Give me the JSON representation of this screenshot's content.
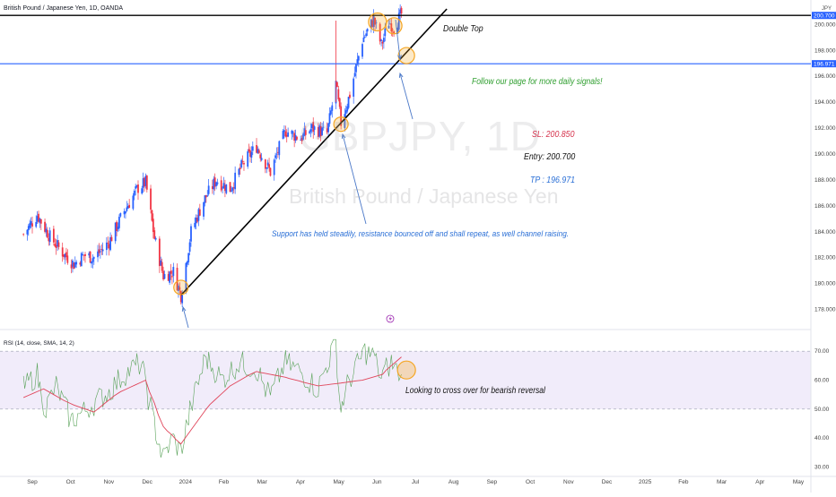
{
  "header": {
    "symbol_title": "British Pound / Japanese Yen, 1D, OANDA",
    "currency": "JPY",
    "watermark_symbol": "GBPJPY, 1D",
    "watermark_name": "British Pound / Japanese Yen"
  },
  "annotations": {
    "double_top": "Double Top",
    "follow": "Follow our page for more daily signals!",
    "sl": "SL: 200.850",
    "entry": "Entry: 200.700",
    "tp": "TP : 196.971",
    "support": "Support has held steadily, resistance bounced off and shall repeat, as well channel raising.",
    "rsi_note": "Looking to cross over for bearish reversal"
  },
  "colors": {
    "bull": "#2962ff",
    "bear": "#f23645",
    "resistance_line": "#000000",
    "tp_line": "#2962ff",
    "rsi_line": "#5aa35a",
    "rsi_ma": "#e0455a",
    "rsi_band": "#f1ecfa",
    "highlight": "#f5a623"
  },
  "chart_data": [
    {
      "type": "candlestick",
      "title": "British Pound / Japanese Yen, 1D, OANDA",
      "ylim": [
        177,
        201.2
      ],
      "y_ticks": [
        "200.000",
        "198.000",
        "196.000",
        "194.000",
        "192.000",
        "190.000",
        "188.000",
        "186.000",
        "184.000",
        "182.000",
        "180.000",
        "178.000"
      ],
      "price_labels": [
        "200.700",
        "196.971"
      ],
      "x_ticks": [
        "Sep",
        "Oct",
        "Nov",
        "Dec",
        "2024",
        "Feb",
        "Mar",
        "Apr",
        "May",
        "Jun",
        "Jul",
        "Aug",
        "Sep",
        "Oct",
        "Nov",
        "Dec",
        "2025",
        "Feb",
        "Mar",
        "Apr",
        "May"
      ],
      "levels": {
        "resistance": 200.7,
        "take_profit": 196.971
      },
      "close_path": [
        {
          "d": "2023-08-25",
          "c": 183.8
        },
        {
          "d": "2023-09-05",
          "c": 185.3
        },
        {
          "d": "2023-09-15",
          "c": 183.6
        },
        {
          "d": "2023-09-25",
          "c": 182.4
        },
        {
          "d": "2023-10-04",
          "c": 181.5
        },
        {
          "d": "2023-10-12",
          "c": 182.2
        },
        {
          "d": "2023-10-20",
          "c": 182.0
        },
        {
          "d": "2023-11-01",
          "c": 183.2
        },
        {
          "d": "2023-11-13",
          "c": 185.6
        },
        {
          "d": "2023-11-24",
          "c": 187.4
        },
        {
          "d": "2023-11-30",
          "c": 187.8
        },
        {
          "d": "2023-12-07",
          "c": 183.5
        },
        {
          "d": "2023-12-14",
          "c": 180.6
        },
        {
          "d": "2023-12-22",
          "c": 180.9
        },
        {
          "d": "2023-12-28",
          "c": 179.1
        },
        {
          "d": "2024-01-05",
          "c": 184.0
        },
        {
          "d": "2024-01-15",
          "c": 186.4
        },
        {
          "d": "2024-01-25",
          "c": 188.0
        },
        {
          "d": "2024-02-05",
          "c": 187.3
        },
        {
          "d": "2024-02-15",
          "c": 189.2
        },
        {
          "d": "2024-02-26",
          "c": 190.6
        },
        {
          "d": "2024-03-08",
          "c": 188.6
        },
        {
          "d": "2024-03-20",
          "c": 191.8
        },
        {
          "d": "2024-04-01",
          "c": 191.2
        },
        {
          "d": "2024-04-10",
          "c": 192.0
        },
        {
          "d": "2024-04-22",
          "c": 191.6
        },
        {
          "d": "2024-04-29",
          "c": 195.4
        },
        {
          "d": "2024-05-03",
          "c": 192.4
        },
        {
          "d": "2024-05-10",
          "c": 194.6
        },
        {
          "d": "2024-05-20",
          "c": 198.8
        },
        {
          "d": "2024-05-29",
          "c": 200.4
        },
        {
          "d": "2024-06-04",
          "c": 198.4
        },
        {
          "d": "2024-06-10",
          "c": 200.2
        },
        {
          "d": "2024-06-14",
          "c": 199.8
        },
        {
          "d": "2024-06-20",
          "c": 200.8
        }
      ],
      "trendline": [
        {
          "d": "2023-12-28",
          "y": 179.1
        },
        {
          "d": "2024-07-26",
          "y": 201.2
        }
      ]
    },
    {
      "type": "line",
      "title": "RSI (14, close, SMA, 14, 2)",
      "ylim": [
        28,
        75
      ],
      "y_ticks": [
        "70.00",
        "60.00",
        "50.00",
        "40.00",
        "30.00"
      ],
      "bands": [
        50,
        70
      ],
      "series": [
        {
          "values": [
            [
              "2023-08-25",
              57
            ],
            [
              "2023-09-05",
              62
            ],
            [
              "2023-09-12",
              50
            ],
            [
              "2023-09-20",
              58
            ],
            [
              "2023-10-02",
              46
            ],
            [
              "2023-10-12",
              49
            ],
            [
              "2023-10-20",
              52
            ],
            [
              "2023-11-01",
              56
            ],
            [
              "2023-11-13",
              62
            ],
            [
              "2023-11-27",
              66
            ],
            [
              "2023-12-07",
              45
            ],
            [
              "2023-12-14",
              33
            ],
            [
              "2023-12-22",
              40
            ],
            [
              "2023-12-28",
              35
            ],
            [
              "2024-01-08",
              55
            ],
            [
              "2024-01-17",
              68
            ],
            [
              "2024-01-30",
              60
            ],
            [
              "2024-02-12",
              66
            ],
            [
              "2024-02-26",
              64
            ],
            [
              "2024-03-08",
              54
            ],
            [
              "2024-03-20",
              66
            ],
            [
              "2024-04-01",
              63
            ],
            [
              "2024-04-15",
              57
            ],
            [
              "2024-04-29",
              73
            ],
            [
              "2024-05-03",
              50
            ],
            [
              "2024-05-10",
              60
            ],
            [
              "2024-05-22",
              70
            ],
            [
              "2024-05-30",
              68
            ],
            [
              "2024-06-04",
              61
            ],
            [
              "2024-06-12",
              66
            ],
            [
              "2024-06-20",
              62
            ]
          ]
        },
        {
          "values": [
            [
              "2023-08-25",
              54
            ],
            [
              "2023-09-10",
              57
            ],
            [
              "2023-10-01",
              52
            ],
            [
              "2023-10-20",
              49
            ],
            [
              "2023-11-10",
              56
            ],
            [
              "2023-11-30",
              60
            ],
            [
              "2023-12-14",
              44
            ],
            [
              "2023-12-28",
              38
            ],
            [
              "2024-01-17",
              50
            ],
            [
              "2024-02-05",
              58
            ],
            [
              "2024-02-26",
              63
            ],
            [
              "2024-03-20",
              61
            ],
            [
              "2024-04-15",
              58
            ],
            [
              "2024-05-03",
              59
            ],
            [
              "2024-05-20",
              60
            ],
            [
              "2024-06-05",
              62
            ],
            [
              "2024-06-20",
              68
            ]
          ]
        }
      ]
    }
  ]
}
